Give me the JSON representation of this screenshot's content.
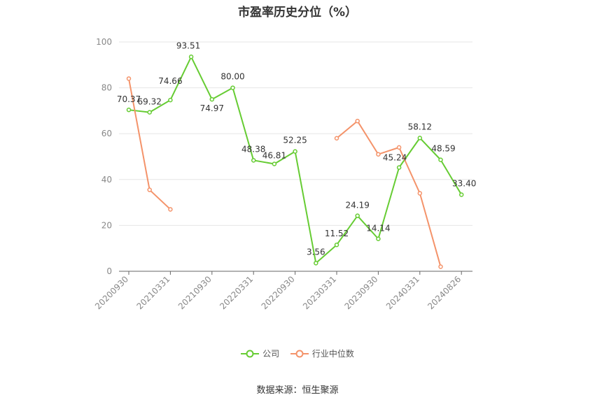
{
  "chart_data": {
    "type": "line",
    "title": "市盈率历史分位（%）",
    "x_tick_labels": [
      "20200930",
      "20210331",
      "20210930",
      "20220331",
      "20220930",
      "20230331",
      "20230930",
      "20240331",
      "20240826"
    ],
    "ylim": [
      0,
      100
    ],
    "y_ticks": [
      0,
      20,
      40,
      60,
      80,
      100
    ],
    "grid": true,
    "legend_position": "bottom-center",
    "series": [
      {
        "name": "公司",
        "color": "#66cc33",
        "values": [
          70.37,
          69.32,
          74.66,
          93.51,
          74.97,
          80.0,
          48.38,
          46.81,
          52.25,
          3.56,
          11.52,
          24.19,
          14.14,
          45.24,
          58.12,
          48.59,
          33.4
        ],
        "labels": [
          "70.37",
          "69.32",
          "74.66",
          "93.51",
          "74.97",
          "80.00",
          "48.38",
          "46.81",
          "52.25",
          "3.56",
          "11.52",
          "24.19",
          "14.14",
          "45.24",
          "58.12",
          "48.59",
          "33.40"
        ]
      },
      {
        "name": "行业中位数",
        "color": "#f4936a",
        "values": [
          84,
          35.5,
          27,
          null,
          null,
          null,
          null,
          null,
          null,
          null,
          58,
          65.5,
          51,
          54,
          34,
          2,
          null
        ]
      }
    ]
  },
  "footer": {
    "source": "数据来源：恒生聚源"
  }
}
